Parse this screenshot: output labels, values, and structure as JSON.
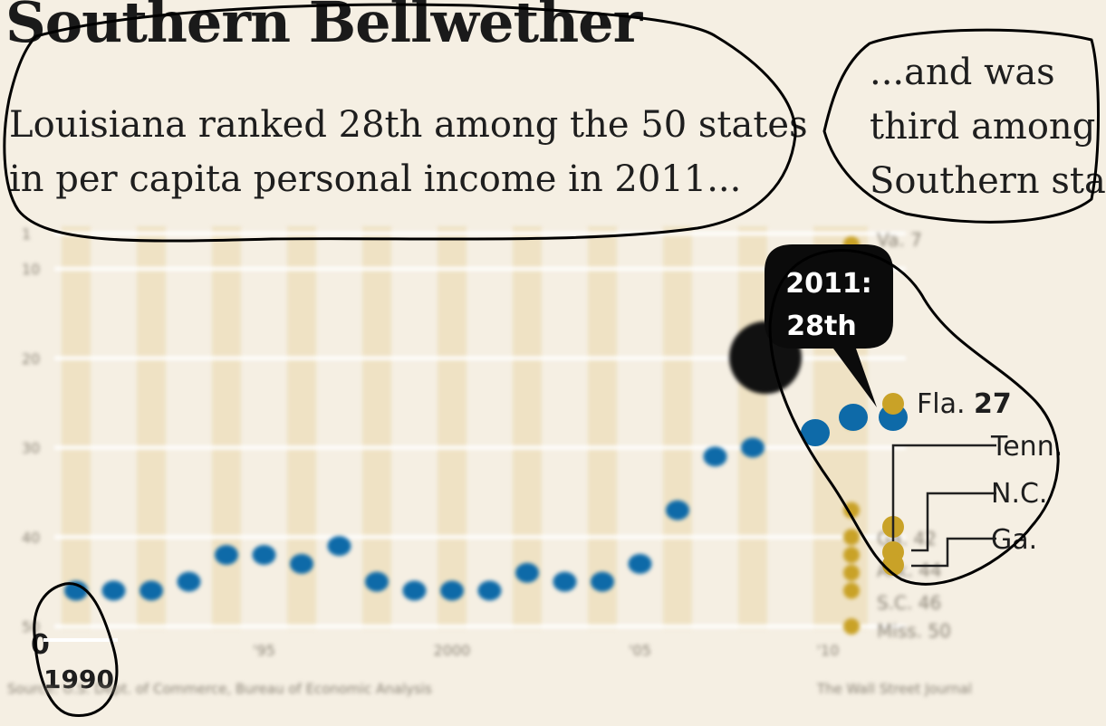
{
  "header": {
    "title": "Southern Bellwether",
    "subtitle_left_1": "Louisiana ranked 28th among the 50 states",
    "subtitle_left_2": "in per capita personal income in 2011...",
    "subtitle_right_1": "...and was",
    "subtitle_right_2": "third among",
    "subtitle_right_3": "Southern stat"
  },
  "callout": {
    "line1": "2011:",
    "line2": "28th"
  },
  "footer": {
    "source": "Source: U.S. Dept. of Commerce, Bureau of Economic Analysis",
    "credit": "The Wall Street Journal"
  },
  "colors": {
    "louisiana": "#0e6aa8",
    "southern": "#c9a227",
    "band": "#efe2c4",
    "background": "#f5efe3"
  },
  "chart_data": {
    "type": "scatter",
    "title": "Southern Bellwether",
    "y_reversed": true,
    "ylim": [
      50,
      1
    ],
    "y_ticks": [
      "1",
      "10",
      "20",
      "30",
      "40",
      "50"
    ],
    "x_ticks": [
      "1990",
      "'95",
      "2000",
      "'05",
      "'10"
    ],
    "series": [
      {
        "name": "Louisiana",
        "x": [
          1990,
          1991,
          1992,
          1993,
          1994,
          1995,
          1996,
          1997,
          1998,
          1999,
          2000,
          2001,
          2002,
          2003,
          2004,
          2005,
          2006,
          2007,
          2008,
          2009,
          2010,
          2011
        ],
        "values": [
          46,
          46,
          46,
          45,
          42,
          42,
          43,
          41,
          45,
          46,
          46,
          46,
          44,
          45,
          45,
          43,
          37,
          31,
          30,
          30,
          29,
          28
        ]
      }
    ],
    "southern_2011": [
      {
        "label": "Va.",
        "rank": "7"
      },
      {
        "label": "Fla.",
        "rank": "27"
      },
      {
        "label": "Tenn.",
        "rank": ""
      },
      {
        "label": "N.C.",
        "rank": ""
      },
      {
        "label": "Ga.",
        "rank": "42"
      },
      {
        "label": "Ark.",
        "rank": "44"
      },
      {
        "label": "S.C.",
        "rank": "46"
      },
      {
        "label": "Miss.",
        "rank": "50"
      }
    ]
  }
}
